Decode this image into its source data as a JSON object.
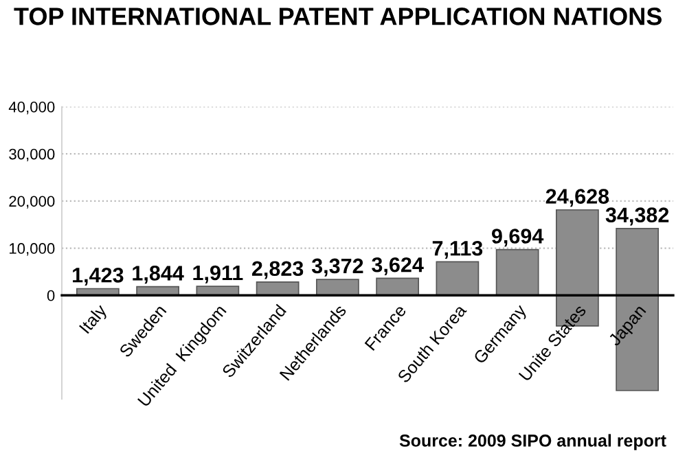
{
  "chart_data": {
    "type": "bar",
    "title": "TOP INTERNATIONAL PATENT APPLICATION NATIONS",
    "categories": [
      "Italy",
      "Sweden",
      "United  Kingdom",
      "Switzerland",
      "Netherlands",
      "France",
      "South Korea",
      "Germany",
      "Unite States",
      "Japan"
    ],
    "values": [
      1423,
      1844,
      1911,
      2823,
      3372,
      3624,
      7113,
      9694,
      24628,
      34382
    ],
    "base": [
      0,
      0,
      0,
      0,
      0,
      0,
      0,
      0,
      -6500,
      -20200
    ],
    "color": "#8c8c8c",
    "value_labels": [
      "1,423",
      "1,844",
      "1,911",
      "2,823",
      "3,372",
      "3,624",
      "7,113",
      "9,694",
      "24,628",
      "34,382"
    ],
    "ylim": [
      -22000,
      40000
    ],
    "yticks": [
      {
        "value": 0,
        "label": "0"
      },
      {
        "value": 10000,
        "label": "10,000"
      },
      {
        "value": 20000,
        "label": "20,000"
      },
      {
        "value": 30000,
        "label": "30,000"
      },
      {
        "value": 40000,
        "label": "40,000"
      }
    ],
    "grid": "y",
    "annotations": [
      "Source: 2009 SIPO annual report"
    ]
  }
}
